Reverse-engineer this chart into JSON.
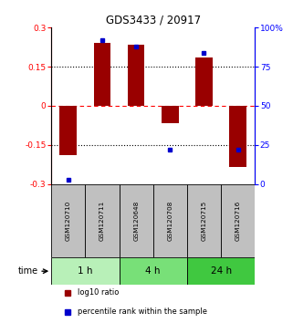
{
  "title": "GDS3433 / 20917",
  "samples": [
    "GSM120710",
    "GSM120711",
    "GSM120648",
    "GSM120708",
    "GSM120715",
    "GSM120716"
  ],
  "log10_ratio": [
    -0.19,
    0.24,
    0.235,
    -0.065,
    0.185,
    -0.235
  ],
  "percentile_rank": [
    3,
    92,
    88,
    22,
    84,
    22
  ],
  "time_groups": [
    {
      "label": "1 h",
      "samples": [
        0,
        1
      ],
      "color": "#b8f0b8"
    },
    {
      "label": "4 h",
      "samples": [
        2,
        3
      ],
      "color": "#78e078"
    },
    {
      "label": "24 h",
      "samples": [
        4,
        5
      ],
      "color": "#40c840"
    }
  ],
  "bar_color": "#990000",
  "dot_color": "#0000cc",
  "ylim_left": [
    -0.3,
    0.3
  ],
  "ylim_right": [
    0,
    100
  ],
  "yticks_left": [
    -0.3,
    -0.15,
    0,
    0.15,
    0.3
  ],
  "yticks_right": [
    0,
    25,
    50,
    75,
    100
  ],
  "ytick_labels_left": [
    "-0.3",
    "-0.15",
    "0",
    "0.15",
    "0.3"
  ],
  "ytick_labels_right": [
    "0",
    "25",
    "50",
    "75",
    "100%"
  ],
  "hlines_dotted": [
    -0.15,
    0.15
  ],
  "hline_dashed_color": "red",
  "bar_width": 0.5,
  "legend_items": [
    "log10 ratio",
    "percentile rank within the sample"
  ],
  "legend_colors": [
    "#990000",
    "#0000cc"
  ],
  "time_label": "time",
  "sample_box_color": "#c0c0c0",
  "sample_box_edge": "#000000"
}
